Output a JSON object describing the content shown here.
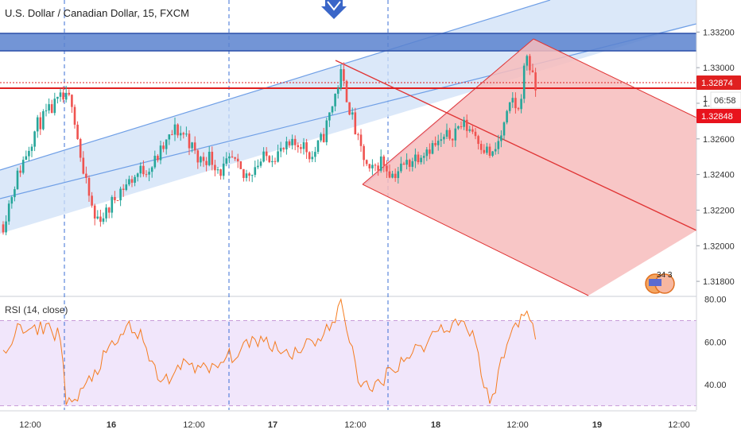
{
  "header": {
    "title": "U.S. Dollar / Canadian Dollar, 15, FXCM"
  },
  "rsi_panel": {
    "label": "RSI (14, close)"
  },
  "badges": {
    "price_last": "1.32874",
    "countdown": "06:58",
    "price_level": "1.32848",
    "partial_tick": "1",
    "flag_counts": "34  3"
  },
  "colors": {
    "up_candle": "#26a69a",
    "down_candle": "#ef5350",
    "channel_fill": "#cfe0f7",
    "channel_line": "#6f9fe6",
    "zone_fill": "#5b82cf",
    "zone_line": "#2b4fa8",
    "pitchfork_fill": "#f7bcbc",
    "pitchfork_line": "#e03535",
    "hline": "#e02020",
    "rsi_line": "#f57c1f",
    "rsi_band": "#f1e6fb",
    "rsi_band_line": "#c69bd8",
    "session_line": "#3b6fd6",
    "arrow": "#3a66c8"
  },
  "chart_data": [
    {
      "type": "candlestick",
      "title": "U.S. Dollar / Canadian Dollar, 15, FXCM",
      "y_axis_ticks": [
        "1.33200",
        "1.33000",
        "1.32800",
        "1.32600",
        "1.32400",
        "1.32200",
        "1.32000",
        "1.31800"
      ],
      "y_axis_values": [
        1.332,
        1.33,
        1.328,
        1.326,
        1.324,
        1.322,
        1.32,
        1.318
      ],
      "ylim": [
        1.3172,
        1.3338
      ],
      "x_axis_ticks": [
        "12:00",
        "16",
        "12:00",
        "17",
        "12:00",
        "18",
        "12:00",
        "19",
        "12:00"
      ],
      "anchors": [
        {
          "t": 0,
          "p": 1.3212
        },
        {
          "t": 4,
          "p": 1.3235
        },
        {
          "t": 8,
          "p": 1.3252
        },
        {
          "t": 12,
          "p": 1.3268
        },
        {
          "t": 16,
          "p": 1.3275
        },
        {
          "t": 20,
          "p": 1.3282
        },
        {
          "t": 24,
          "p": 1.3282
        },
        {
          "t": 28,
          "p": 1.324
        },
        {
          "t": 32,
          "p": 1.3215
        },
        {
          "t": 36,
          "p": 1.3218
        },
        {
          "t": 40,
          "p": 1.323
        },
        {
          "t": 44,
          "p": 1.3236
        },
        {
          "t": 48,
          "p": 1.3242
        },
        {
          "t": 52,
          "p": 1.3245
        },
        {
          "t": 56,
          "p": 1.3255
        },
        {
          "t": 60,
          "p": 1.3265
        },
        {
          "t": 64,
          "p": 1.3262
        },
        {
          "t": 68,
          "p": 1.3248
        },
        {
          "t": 72,
          "p": 1.325
        },
        {
          "t": 76,
          "p": 1.3242
        },
        {
          "t": 80,
          "p": 1.3248
        },
        {
          "t": 84,
          "p": 1.3238
        },
        {
          "t": 88,
          "p": 1.3245
        },
        {
          "t": 92,
          "p": 1.325
        },
        {
          "t": 96,
          "p": 1.3252
        },
        {
          "t": 100,
          "p": 1.3255
        },
        {
          "t": 104,
          "p": 1.3258
        },
        {
          "t": 108,
          "p": 1.325
        },
        {
          "t": 112,
          "p": 1.3262
        },
        {
          "t": 116,
          "p": 1.3285
        },
        {
          "t": 118,
          "p": 1.3296
        },
        {
          "t": 120,
          "p": 1.3284
        },
        {
          "t": 124,
          "p": 1.3258
        },
        {
          "t": 128,
          "p": 1.324
        },
        {
          "t": 132,
          "p": 1.3248
        },
        {
          "t": 136,
          "p": 1.324
        },
        {
          "t": 140,
          "p": 1.3245
        },
        {
          "t": 144,
          "p": 1.325
        },
        {
          "t": 148,
          "p": 1.3255
        },
        {
          "t": 152,
          "p": 1.3257
        },
        {
          "t": 156,
          "p": 1.3262
        },
        {
          "t": 160,
          "p": 1.3268
        },
        {
          "t": 164,
          "p": 1.3265
        },
        {
          "t": 168,
          "p": 1.3255
        },
        {
          "t": 171,
          "p": 1.325
        },
        {
          "t": 174,
          "p": 1.3262
        },
        {
          "t": 178,
          "p": 1.3282
        },
        {
          "t": 180,
          "p": 1.3275
        },
        {
          "t": 182,
          "p": 1.3298
        },
        {
          "t": 183,
          "p": 1.3308
        },
        {
          "t": 185,
          "p": 1.3293
        },
        {
          "t": 186,
          "p": 1.3288
        }
      ]
    },
    {
      "type": "line",
      "title": "RSI (14, close)",
      "y_axis_ticks": [
        "80.00",
        "60.00",
        "40.00"
      ],
      "y_axis_values": [
        80,
        60,
        40
      ],
      "ylim": [
        28,
        81
      ],
      "bands": [
        70,
        30
      ],
      "anchors": [
        {
          "t": 0,
          "v": 55
        },
        {
          "t": 5,
          "v": 66
        },
        {
          "t": 10,
          "v": 64
        },
        {
          "t": 15,
          "v": 68
        },
        {
          "t": 20,
          "v": 62
        },
        {
          "t": 22,
          "v": 34
        },
        {
          "t": 25,
          "v": 31
        },
        {
          "t": 28,
          "v": 37
        },
        {
          "t": 32,
          "v": 46
        },
        {
          "t": 36,
          "v": 54
        },
        {
          "t": 40,
          "v": 60
        },
        {
          "t": 44,
          "v": 68
        },
        {
          "t": 48,
          "v": 62
        },
        {
          "t": 52,
          "v": 48
        },
        {
          "t": 56,
          "v": 42
        },
        {
          "t": 60,
          "v": 44
        },
        {
          "t": 64,
          "v": 52
        },
        {
          "t": 68,
          "v": 48
        },
        {
          "t": 72,
          "v": 46
        },
        {
          "t": 76,
          "v": 50
        },
        {
          "t": 80,
          "v": 54
        },
        {
          "t": 84,
          "v": 56
        },
        {
          "t": 88,
          "v": 62
        },
        {
          "t": 92,
          "v": 60
        },
        {
          "t": 96,
          "v": 58
        },
        {
          "t": 100,
          "v": 54
        },
        {
          "t": 104,
          "v": 58
        },
        {
          "t": 108,
          "v": 60
        },
        {
          "t": 112,
          "v": 64
        },
        {
          "t": 116,
          "v": 70
        },
        {
          "t": 118,
          "v": 78
        },
        {
          "t": 120,
          "v": 68
        },
        {
          "t": 124,
          "v": 44
        },
        {
          "t": 128,
          "v": 36
        },
        {
          "t": 132,
          "v": 42
        },
        {
          "t": 136,
          "v": 48
        },
        {
          "t": 140,
          "v": 52
        },
        {
          "t": 144,
          "v": 56
        },
        {
          "t": 148,
          "v": 60
        },
        {
          "t": 152,
          "v": 66
        },
        {
          "t": 156,
          "v": 68
        },
        {
          "t": 160,
          "v": 70
        },
        {
          "t": 164,
          "v": 64
        },
        {
          "t": 166,
          "v": 56
        },
        {
          "t": 168,
          "v": 36
        },
        {
          "t": 171,
          "v": 34
        },
        {
          "t": 174,
          "v": 50
        },
        {
          "t": 178,
          "v": 66
        },
        {
          "t": 180,
          "v": 70
        },
        {
          "t": 182,
          "v": 76
        },
        {
          "t": 183,
          "v": 72
        },
        {
          "t": 185,
          "v": 68
        },
        {
          "t": 186,
          "v": 58
        }
      ]
    }
  ]
}
